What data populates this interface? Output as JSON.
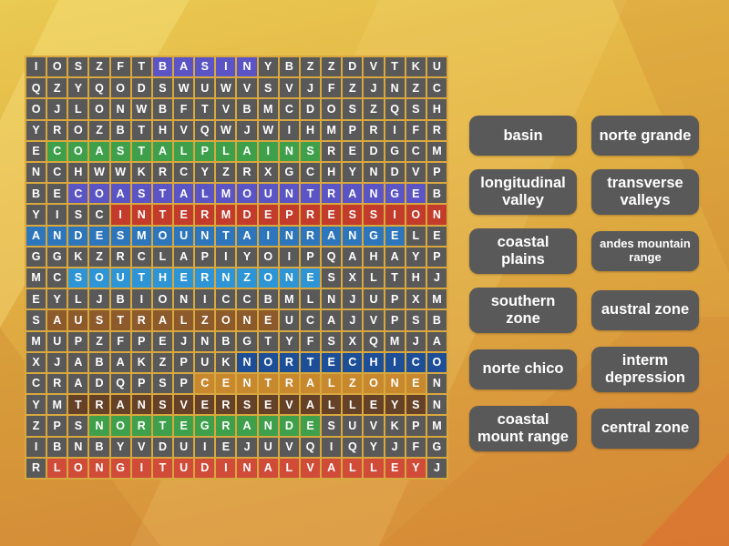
{
  "app_title": "wordsearch-puzzle",
  "theme": {
    "background_top": "#e9ca52",
    "background_bottom": "#d68e38",
    "grid_line_color": "#d8a83e",
    "cell_bg": "#595959",
    "cell_text": "#ffffff",
    "button_bg": "#595959",
    "button_text": "#ffffff"
  },
  "grid": {
    "size": 20,
    "rows": [
      "IOSZFTBASINYBZZDVTKU",
      "QZYQODSWUWVSVJFZJNZC",
      "OJLONWBFTVBMCDOSZQSH",
      "YROZBTHVQWJWIHMPRIFR",
      "ECOASTALPLAINSREDGCM",
      "NCHWWKRCYZRXGCHYNDVP",
      "BECOASTALMOUNTRANGEB",
      "YISCINTERMDEPRESSION",
      "ANDESMOUNTAINRANGELE",
      "GGKZRCLAPIYOIPQAHAYP",
      "MCSOUTHERNZONESXLTHJ",
      "EYLJBIONICCBMLNJUPXM",
      "SAUSTRALZONEUCAJVPSB",
      "MUPZFPEJNBGTYFSXQMJA",
      "XJABAKZPUKNORTECHICO",
      "CRADQPSPCENTRALZONEN",
      "YMTRANSVERSEVALLEYSN",
      "ZPSNORTEGRANDESUVKPM",
      "IBNBYVDUIEJUVQIQYJFG",
      "RLONGITUDINALVALLEYJ"
    ],
    "highlights": [
      {
        "word": "BASIN",
        "row": 1,
        "col_start": 7,
        "col_end": 11,
        "color": "#5b54c4"
      },
      {
        "word": "COASTALPLAINS",
        "row": 5,
        "col_start": 2,
        "col_end": 14,
        "color": "#3fa04c"
      },
      {
        "word": "COASTALMOUNTRANGE",
        "row": 7,
        "col_start": 3,
        "col_end": 19,
        "color": "#5b54c4"
      },
      {
        "word": "INTERMDEPRESSION",
        "row": 8,
        "col_start": 5,
        "col_end": 20,
        "color": "#c23b2b"
      },
      {
        "word": "ANDESMOUNTAINRANGE",
        "row": 9,
        "col_start": 1,
        "col_end": 18,
        "color": "#2e76bb"
      },
      {
        "word": "SOUTHERNZONE",
        "row": 11,
        "col_start": 3,
        "col_end": 14,
        "color": "#2d94d6"
      },
      {
        "word": "AUSTRALZONE",
        "row": 13,
        "col_start": 2,
        "col_end": 12,
        "color": "#8c5a2b"
      },
      {
        "word": "NORTECHICO",
        "row": 15,
        "col_start": 11,
        "col_end": 20,
        "color": "#1c4f97"
      },
      {
        "word": "CENTRALZONE",
        "row": 16,
        "col_start": 9,
        "col_end": 19,
        "color": "#c8892e"
      },
      {
        "word": "TRANSVERSEVALLEYS",
        "row": 17,
        "col_start": 3,
        "col_end": 19,
        "color": "#654128"
      },
      {
        "word": "NORTEGRANDE",
        "row": 18,
        "col_start": 4,
        "col_end": 14,
        "color": "#3fa04c"
      },
      {
        "word": "LONGITUDINALVALLEY",
        "row": 20,
        "col_start": 2,
        "col_end": 19,
        "color": "#d04b38"
      }
    ]
  },
  "word_list": {
    "rows": [
      [
        {
          "label": "basin"
        },
        {
          "label": "norte grande"
        }
      ],
      [
        {
          "label": "longitudinal valley"
        },
        {
          "label": "transverse valleys"
        }
      ],
      [
        {
          "label": "coastal plains"
        },
        {
          "label": "andes mountain range",
          "small": true
        }
      ],
      [
        {
          "label": "southern zone"
        },
        {
          "label": "austral zone"
        }
      ],
      [
        {
          "label": "norte chico"
        },
        {
          "label": "interm depression"
        }
      ],
      [
        {
          "label": "coastal mount range"
        },
        {
          "label": "central zone"
        }
      ]
    ]
  }
}
